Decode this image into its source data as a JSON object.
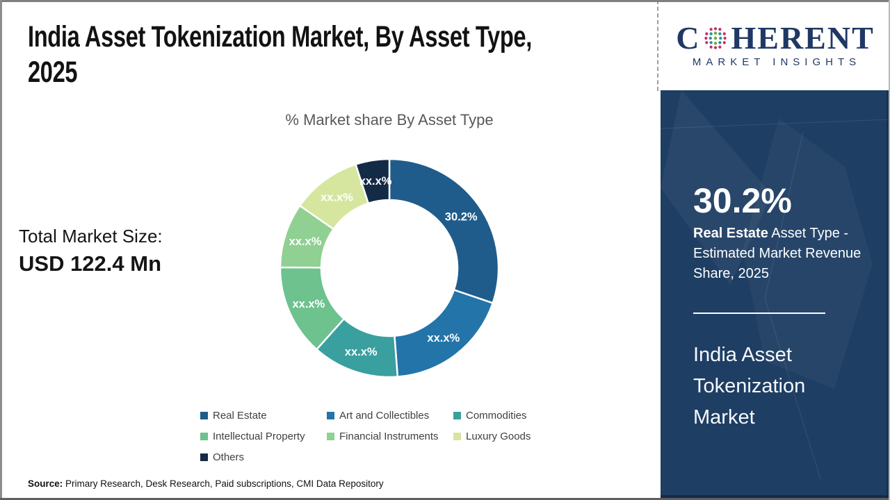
{
  "page": {
    "title_line1": "India Asset Tokenization Market, By Asset Type,",
    "title_line2": "2025",
    "chart_title": "% Market share By Asset Type",
    "total_market_label": "Total Market Size:",
    "total_market_value": "USD 122.4 Mn",
    "source_label": "Source:",
    "source_text": " Primary Research, Desk Research, Paid subscriptions, CMI Data Repository"
  },
  "logo": {
    "brand_prefix": "C",
    "brand_suffix": "HERENT",
    "brand_subtitle": "MARKET INSIGHTS",
    "brand_color": "#1f3864"
  },
  "sidebar": {
    "stat_value": "30.2%",
    "stat_highlight": "Real Estate",
    "stat_description": " Asset Type - Estimated Market Revenue Share, 2025",
    "footer_title": "India Asset Tokenization Market",
    "background_color": "#1e3e63"
  },
  "chart_data": {
    "type": "pie",
    "donut": true,
    "title": "% Market share By Asset Type",
    "legend_position": "bottom",
    "start_angle_deg": 0,
    "series": [
      {
        "name": "Real Estate",
        "value": 30.2,
        "label": "30.2%",
        "color": "#1f5c8b"
      },
      {
        "name": "Art and Collectibles",
        "value": 18.6,
        "label": "xx.x%",
        "color": "#2374a9"
      },
      {
        "name": "Commodities",
        "value": 12.8,
        "label": "xx.x%",
        "color": "#399f9f"
      },
      {
        "name": "Intellectual Property",
        "value": 13.5,
        "label": "xx.x%",
        "color": "#6dc28e"
      },
      {
        "name": "Financial Instruments",
        "value": 9.6,
        "label": "xx.x%",
        "color": "#90d092"
      },
      {
        "name": "Luxury Goods",
        "value": 10.3,
        "label": "xx.x%",
        "color": "#d6e69e"
      },
      {
        "name": "Others",
        "value": 5.0,
        "label": "xx.x%",
        "color": "#142b45"
      }
    ]
  }
}
